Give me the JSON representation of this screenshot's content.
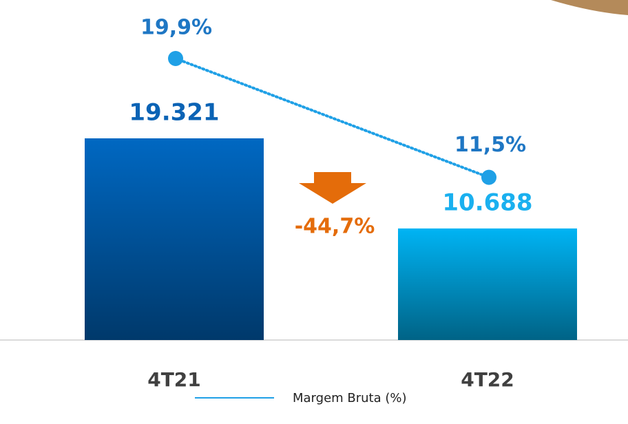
{
  "chart_data": {
    "type": "bar-line",
    "categories": [
      "4T21",
      "4T22"
    ],
    "series": [
      {
        "type": "bar",
        "colors": [
          "#0068c2",
          "#00b4f4"
        ],
        "values": [
          19321,
          10688
        ],
        "value_labels": [
          "19.321",
          "10.688"
        ]
      },
      {
        "type": "line",
        "name": "Margem Bruta (%)",
        "color": "#1fa0e6",
        "values": [
          19.9,
          11.5
        ],
        "value_labels": [
          "19,9%",
          "11,5%"
        ]
      }
    ],
    "annotations": [
      "-44,7%"
    ],
    "legend": "bottom"
  }
}
